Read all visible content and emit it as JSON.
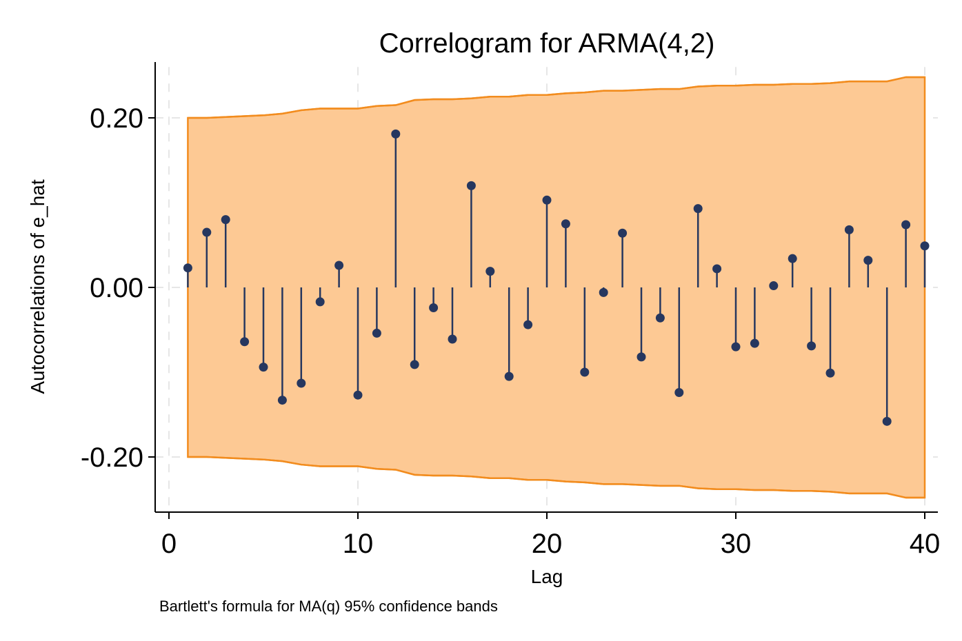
{
  "chart_data": {
    "type": "stem",
    "title": "Correlogram for ARMA(4,2)",
    "xlabel": "Lag",
    "ylabel": "Autocorrelations of e_hat",
    "note": "Bartlett's formula for MA(q) 95% confidence bands",
    "xlim": [
      0,
      40
    ],
    "ylim": [
      -0.26,
      0.26
    ],
    "x_ticks": [
      0,
      10,
      20,
      30,
      40
    ],
    "y_ticks": [
      -0.2,
      0.0,
      0.2
    ],
    "y_tick_labels": [
      "-0.20",
      "0.00",
      "0.20"
    ],
    "grid": true,
    "colors": {
      "stem": "#26375f",
      "band_fill": "#fdc994",
      "band_line": "#f28c1e",
      "grid": "#e6e6e6",
      "axis": "#000000"
    },
    "lags": [
      1,
      2,
      3,
      4,
      5,
      6,
      7,
      8,
      9,
      10,
      11,
      12,
      13,
      14,
      15,
      16,
      17,
      18,
      19,
      20,
      21,
      22,
      23,
      24,
      25,
      26,
      27,
      28,
      29,
      30,
      31,
      32,
      33,
      34,
      35,
      36,
      37,
      38,
      39,
      40
    ],
    "acf": [
      0.023,
      0.065,
      0.08,
      -0.064,
      -0.094,
      -0.133,
      -0.113,
      -0.017,
      0.026,
      -0.127,
      -0.054,
      0.181,
      -0.091,
      -0.024,
      -0.061,
      0.12,
      0.019,
      -0.105,
      -0.044,
      0.103,
      0.075,
      -0.1,
      -0.006,
      0.064,
      -0.082,
      -0.036,
      -0.124,
      0.093,
      0.022,
      -0.07,
      -0.066,
      0.002,
      0.034,
      -0.069,
      -0.101,
      0.068,
      0.032,
      -0.158,
      0.074,
      0.049
    ],
    "band_upper": [
      0.2,
      0.2,
      0.201,
      0.202,
      0.203,
      0.205,
      0.209,
      0.211,
      0.211,
      0.211,
      0.214,
      0.215,
      0.221,
      0.222,
      0.222,
      0.223,
      0.225,
      0.225,
      0.227,
      0.227,
      0.229,
      0.23,
      0.232,
      0.232,
      0.233,
      0.234,
      0.234,
      0.237,
      0.238,
      0.238,
      0.239,
      0.239,
      0.24,
      0.24,
      0.241,
      0.243,
      0.243,
      0.243,
      0.248,
      0.248
    ]
  }
}
